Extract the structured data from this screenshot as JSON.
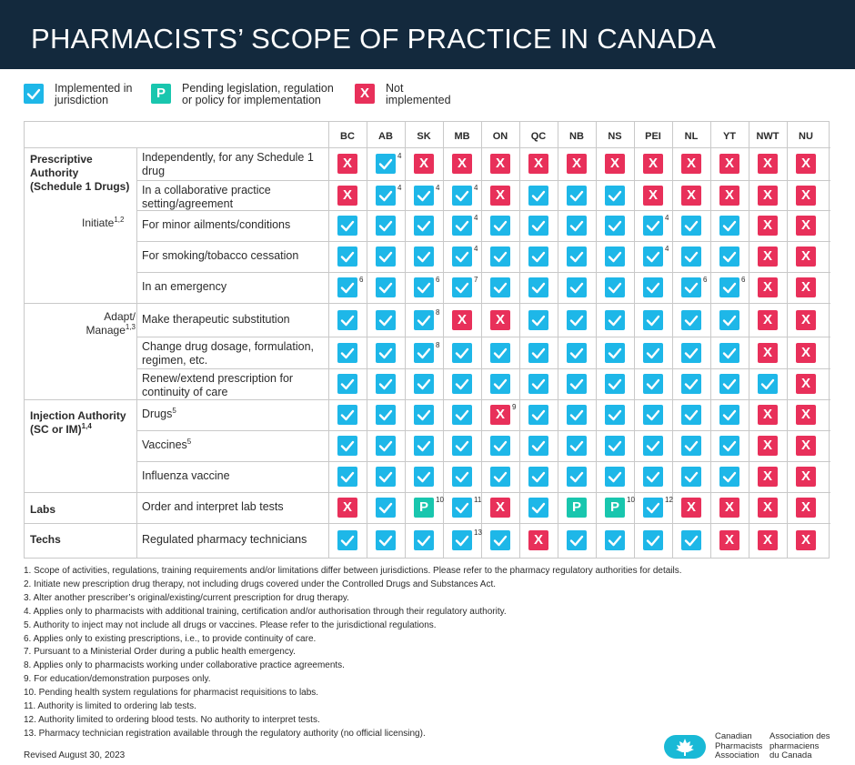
{
  "title": "PHARMACISTS’ SCOPE OF PRACTICE IN CANADA",
  "legend": [
    {
      "icon": "check",
      "label": "Implemented in\njurisdiction"
    },
    {
      "icon": "pending",
      "label": "Pending legislation, regulation\nor policy for implementation",
      "glyph": "P"
    },
    {
      "icon": "x",
      "label": "Not\nimplemented",
      "glyph": "X"
    }
  ],
  "colors": {
    "check": "#1eb7e8",
    "x": "#e8305a",
    "pending": "#19c6ae",
    "banner": "#13293d"
  },
  "jurisdictions": [
    "BC",
    "AB",
    "SK",
    "MB",
    "ON",
    "QC",
    "NB",
    "NS",
    "PEI",
    "NL",
    "YT",
    "NWT",
    "NU"
  ],
  "categories": {
    "prescriptive": "Prescriptive\nAuthority\n(Schedule 1 Drugs)",
    "initiate": "Initiate",
    "initiate_sup": "1,2",
    "adapt": "Adapt/\nManage",
    "adapt_sup": "1,3",
    "injection": "Injection Authority\n(SC or IM)",
    "injection_sup": "1,4",
    "labs": "Labs",
    "techs": "Techs"
  },
  "rows": [
    {
      "label": "Independently, for any Schedule 1 drug",
      "sup": "",
      "cells": [
        "X",
        "C",
        "X",
        "X",
        "X",
        "X",
        "X",
        "X",
        "X",
        "X",
        "X",
        "X",
        "X"
      ],
      "notes": {
        "1": "4"
      }
    },
    {
      "label": "In a collaborative practice setting/agreement",
      "sup": "",
      "cells": [
        "X",
        "C",
        "C",
        "C",
        "X",
        "C",
        "C",
        "C",
        "X",
        "X",
        "X",
        "X",
        "X"
      ],
      "notes": {
        "1": "4",
        "2": "4",
        "3": "4"
      }
    },
    {
      "label": "For minor ailments/conditions",
      "sup": "",
      "cells": [
        "C",
        "C",
        "C",
        "C",
        "C",
        "C",
        "C",
        "C",
        "C",
        "C",
        "C",
        "X",
        "X"
      ],
      "notes": {
        "3": "4",
        "8": "4"
      }
    },
    {
      "label": "For smoking/tobacco cessation",
      "sup": "",
      "cells": [
        "C",
        "C",
        "C",
        "C",
        "C",
        "C",
        "C",
        "C",
        "C",
        "C",
        "C",
        "X",
        "X"
      ],
      "notes": {
        "3": "4",
        "8": "4"
      }
    },
    {
      "label": "In an emergency",
      "sup": "",
      "cells": [
        "C",
        "C",
        "C",
        "C",
        "C",
        "C",
        "C",
        "C",
        "C",
        "C",
        "C",
        "X",
        "X"
      ],
      "notes": {
        "0": "6",
        "2": "6",
        "3": "7",
        "9": "6",
        "10": "6"
      }
    },
    {
      "label": "Make therapeutic substitution",
      "sup": "",
      "cells": [
        "C",
        "C",
        "C",
        "X",
        "X",
        "C",
        "C",
        "C",
        "C",
        "C",
        "C",
        "X",
        "X"
      ],
      "notes": {
        "2": "8"
      }
    },
    {
      "label": "Change drug dosage, formulation, regimen, etc.",
      "sup": "",
      "cells": [
        "C",
        "C",
        "C",
        "C",
        "C",
        "C",
        "C",
        "C",
        "C",
        "C",
        "C",
        "X",
        "X"
      ],
      "notes": {
        "2": "8"
      }
    },
    {
      "label": "Renew/extend prescription for continuity of care",
      "sup": "",
      "cells": [
        "C",
        "C",
        "C",
        "C",
        "C",
        "C",
        "C",
        "C",
        "C",
        "C",
        "C",
        "C",
        "X"
      ],
      "notes": {}
    },
    {
      "label": "Drugs",
      "sup": "5",
      "cells": [
        "C",
        "C",
        "C",
        "C",
        "X",
        "C",
        "C",
        "C",
        "C",
        "C",
        "C",
        "X",
        "X"
      ],
      "notes": {
        "4": "9"
      }
    },
    {
      "label": "Vaccines",
      "sup": "5",
      "cells": [
        "C",
        "C",
        "C",
        "C",
        "C",
        "C",
        "C",
        "C",
        "C",
        "C",
        "C",
        "X",
        "X"
      ],
      "notes": {}
    },
    {
      "label": "Influenza vaccine",
      "sup": "",
      "cells": [
        "C",
        "C",
        "C",
        "C",
        "C",
        "C",
        "C",
        "C",
        "C",
        "C",
        "C",
        "X",
        "X"
      ],
      "notes": {}
    },
    {
      "label": "Order and interpret lab tests",
      "sup": "",
      "cells": [
        "X",
        "C",
        "P",
        "C",
        "X",
        "C",
        "P",
        "P",
        "C",
        "X",
        "X",
        "X",
        "X"
      ],
      "notes": {
        "2": "10",
        "3": "11",
        "7": "10",
        "8": "12"
      }
    },
    {
      "label": "Regulated pharmacy technicians",
      "sup": "",
      "cells": [
        "C",
        "C",
        "C",
        "C",
        "C",
        "X",
        "C",
        "C",
        "C",
        "C",
        "X",
        "X",
        "X"
      ],
      "notes": {
        "3": "13"
      }
    }
  ],
  "footnotes": [
    "1.  Scope of activities, regulations, training requirements and/or limitations differ between jurisdictions. Please refer to the pharmacy regulatory authorities for details.",
    "2.  Initiate new prescription drug therapy, not including drugs covered under the Controlled Drugs and Substances Act.",
    "3.  Alter another prescriber’s original/existing/current prescription for drug therapy.",
    "4.  Applies only to pharmacists with additional training, certification and/or authorisation through their regulatory authority.",
    "5.  Authority to inject may not include all drugs or vaccines. Please refer to the jurisdictional regulations.",
    "6.  Applies only to existing prescriptions, i.e., to provide continuity of care.",
    "7.  Pursuant to a Ministerial Order during a public health emergency.",
    "8.  Applies only to pharmacists working under collaborative practice agreements.",
    "9.  For education/demonstration purposes only.",
    "10. Pending health system regulations for pharmacist requisitions to labs.",
    "11. Authority is limited to ordering lab tests.",
    "12. Authority limited to ordering blood tests. No authority to interpret tests.",
    "13. Pharmacy technician registration available through the regulatory authority (no official licensing)."
  ],
  "revised": "Revised August 30, 2023",
  "logo": {
    "en": "Canadian\nPharmacists\nAssociation",
    "fr": "Association des\npharmaciens\ndu Canada",
    "icon": "maple-leaf-icon"
  }
}
